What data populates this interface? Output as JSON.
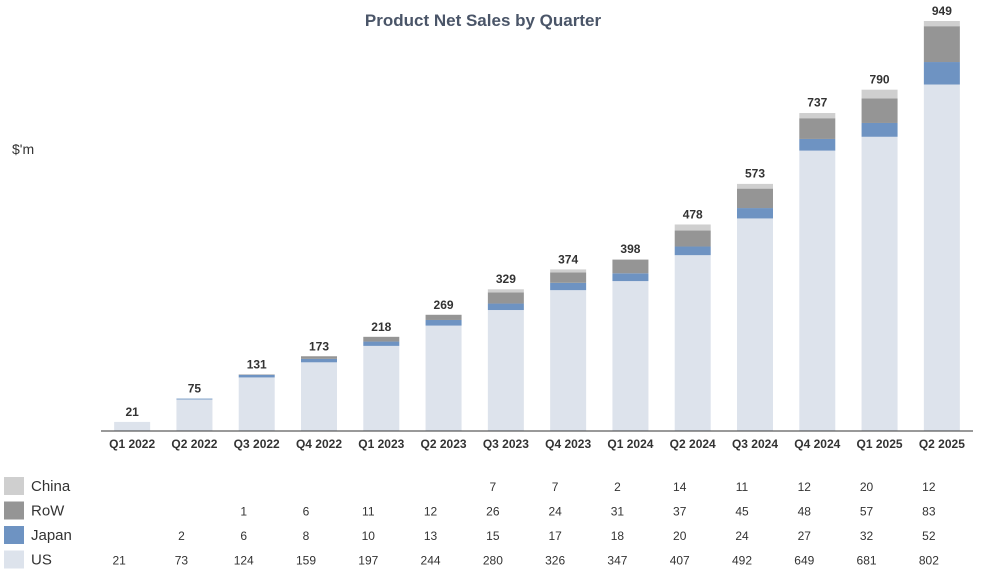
{
  "chart_data": {
    "type": "bar",
    "stacked": true,
    "title": "Product Net Sales by Quarter",
    "ylabel": "$'m",
    "categories": [
      "Q1 2022",
      "Q2 2022",
      "Q3 2022",
      "Q4 2022",
      "Q1 2023",
      "Q2 2023",
      "Q3 2023",
      "Q4 2023",
      "Q1 2024",
      "Q2 2024",
      "Q3 2024",
      "Q4 2024",
      "Q1 2025",
      "Q2 2025"
    ],
    "totals": [
      21,
      75,
      131,
      173,
      218,
      269,
      329,
      374,
      398,
      478,
      573,
      737,
      790,
      949
    ],
    "series": [
      {
        "name": "US",
        "color": "#dde3ec",
        "values": [
          21,
          73,
          124,
          159,
          197,
          244,
          280,
          326,
          347,
          407,
          492,
          649,
          681,
          802
        ]
      },
      {
        "name": "Japan",
        "color": "#6e93c2",
        "values": [
          null,
          2,
          6,
          8,
          10,
          13,
          15,
          17,
          18,
          20,
          24,
          27,
          32,
          52
        ]
      },
      {
        "name": "RoW",
        "color": "#959595",
        "values": [
          null,
          null,
          1,
          6,
          11,
          12,
          26,
          24,
          31,
          37,
          45,
          48,
          57,
          83
        ]
      },
      {
        "name": "China",
        "color": "#cfcfcf",
        "values": [
          null,
          null,
          null,
          null,
          null,
          null,
          7,
          7,
          2,
          14,
          11,
          12,
          20,
          12
        ]
      }
    ],
    "legend_position": "bottom-left",
    "grid": false
  }
}
